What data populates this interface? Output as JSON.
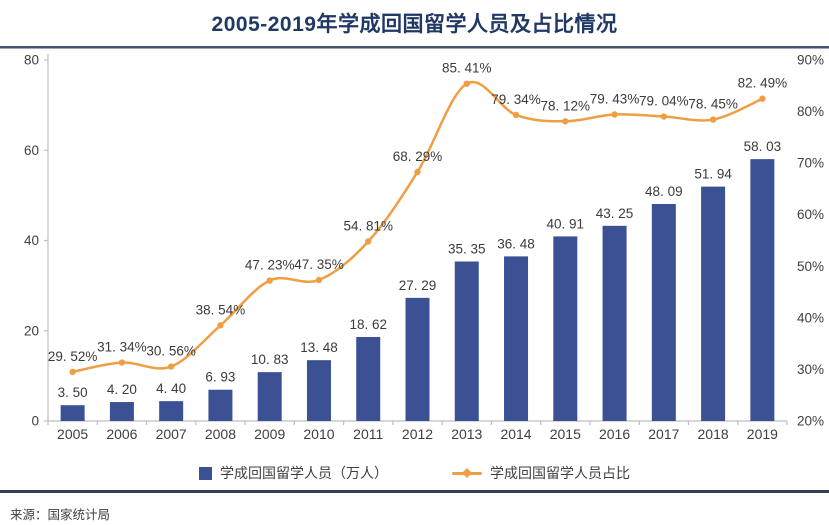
{
  "title": "2005-2019年学成回国留学人员及占比情况",
  "source": "来源：国家统计局",
  "colors": {
    "bar": "#3B5194",
    "line": "#EE9F45",
    "title": "#1F3864",
    "axis": "#BFBFBF",
    "tick_text": "#404040",
    "label_text": "#3B3B3B",
    "separator_top": "#44546A",
    "separator_bottom": "#333F50"
  },
  "legend": [
    {
      "label": "学成回国留学人员（万人）",
      "type": "bar"
    },
    {
      "label": "学成回国留学人员占比",
      "type": "line"
    }
  ],
  "chart_data": {
    "type": "bar",
    "subtype": "bar+line combo, dual axis",
    "title": "2005-2019年学成回国留学人员及占比情况",
    "categories": [
      "2005",
      "2006",
      "2007",
      "2008",
      "2009",
      "2010",
      "2011",
      "2012",
      "2013",
      "2014",
      "2015",
      "2016",
      "2017",
      "2018",
      "2019"
    ],
    "series": [
      {
        "name": "学成回国留学人员（万人）",
        "type": "bar",
        "axis": "left",
        "values": [
          3.5,
          4.2,
          4.4,
          6.93,
          10.83,
          13.48,
          18.62,
          27.29,
          35.35,
          36.48,
          40.91,
          43.25,
          48.09,
          51.94,
          58.03
        ]
      },
      {
        "name": "学成回国留学人员占比",
        "type": "line",
        "axis": "right",
        "values": [
          29.52,
          31.34,
          30.56,
          38.54,
          47.23,
          47.35,
          54.81,
          68.29,
          85.41,
          79.34,
          78.12,
          79.43,
          79.04,
          78.45,
          82.49
        ],
        "suffix": "%"
      }
    ],
    "left_axis": {
      "min": 0,
      "max": 80,
      "step": 20,
      "suffix": ""
    },
    "right_axis": {
      "min": 20,
      "max": 90,
      "step": 10,
      "suffix": "%"
    },
    "grid": false,
    "data_labels": true,
    "legend_position": "bottom",
    "xlabel": "",
    "ylabel": ""
  }
}
